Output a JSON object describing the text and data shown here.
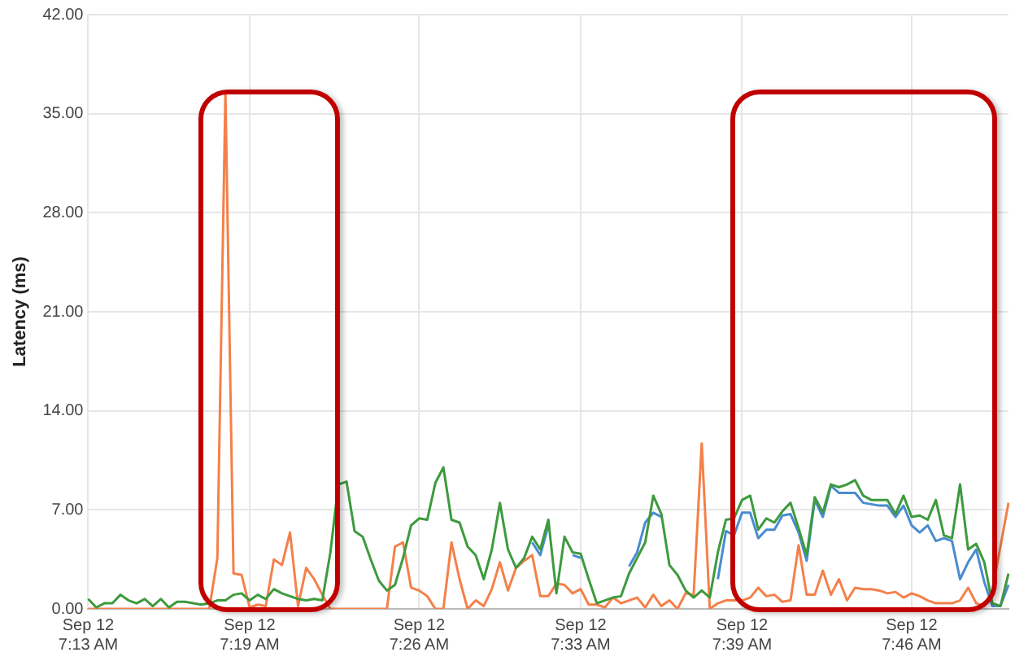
{
  "chart_data": {
    "type": "line",
    "ylabel": "Latency (ms)",
    "categories": [
      "Sep 12\n7:13 AM",
      null,
      null,
      null,
      null,
      null,
      null,
      null,
      null,
      null,
      null,
      null,
      null,
      null,
      null,
      null,
      null,
      null,
      null,
      null,
      "Sep 12\n7:19 AM",
      null,
      null,
      null,
      null,
      null,
      null,
      null,
      null,
      null,
      null,
      null,
      null,
      null,
      null,
      null,
      null,
      null,
      null,
      null,
      null,
      "Sep 12\n7:26 AM",
      null,
      null,
      null,
      null,
      null,
      null,
      null,
      null,
      null,
      null,
      null,
      null,
      null,
      null,
      null,
      null,
      null,
      null,
      null,
      "Sep 12\n7:33 AM",
      null,
      null,
      null,
      null,
      null,
      null,
      null,
      null,
      null,
      null,
      null,
      null,
      null,
      null,
      null,
      null,
      null,
      null,
      null,
      "Sep 12\n7:39 AM",
      null,
      null,
      null,
      null,
      null,
      null,
      null,
      null,
      null,
      null,
      null,
      null,
      null,
      null,
      null,
      null,
      null,
      null,
      null,
      null,
      "Sep 12\n7:46 AM",
      null,
      null,
      null,
      null,
      null,
      null,
      null,
      null,
      null,
      null,
      null,
      null
    ],
    "series": [
      {
        "color": "#3d9a3d",
        "values": [
          0.7,
          0.1,
          0.4,
          0.4,
          1.0,
          0.6,
          0.4,
          0.7,
          0.2,
          0.7,
          0.1,
          0.5,
          0.5,
          0.4,
          0.3,
          0.4,
          0.6,
          0.6,
          1.0,
          1.1,
          0.6,
          1.0,
          0.7,
          1.4,
          1.1,
          0.9,
          0.7,
          0.6,
          0.7,
          0.6,
          4.0,
          8.8,
          9.0,
          5.5,
          5.1,
          3.5,
          2.0,
          1.3,
          1.7,
          3.6,
          5.9,
          6.4,
          6.3,
          8.9,
          10.0,
          6.3,
          6.1,
          4.4,
          3.8,
          2.1,
          4.2,
          7.5,
          4.2,
          2.9,
          3.6,
          5.1,
          4.2,
          6.3,
          1.1,
          5.1,
          4.0,
          3.9,
          2.1,
          0.4,
          0.6,
          0.8,
          0.9,
          2.5,
          3.6,
          4.7,
          8.0,
          6.7,
          3.1,
          2.4,
          1.3,
          0.8,
          1.3,
          0.8,
          4.0,
          6.3,
          6.4,
          7.7,
          8.0,
          5.6,
          6.4,
          6.1,
          6.9,
          7.5,
          5.7,
          3.8,
          7.9,
          6.8,
          8.8,
          8.6,
          8.8,
          9.1,
          8.0,
          7.7,
          7.7,
          7.7,
          6.7,
          8.0,
          6.5,
          6.6,
          6.3,
          7.7,
          5.2,
          5.0,
          8.8,
          4.2,
          4.6,
          3.3,
          0.4,
          0.2,
          2.5
        ]
      },
      {
        "color": "#4a8bd0",
        "values": [
          null,
          null,
          null,
          null,
          null,
          null,
          null,
          null,
          null,
          null,
          null,
          null,
          null,
          null,
          null,
          null,
          null,
          null,
          null,
          null,
          null,
          null,
          null,
          null,
          null,
          null,
          null,
          null,
          null,
          null,
          null,
          null,
          null,
          null,
          null,
          null,
          null,
          null,
          null,
          null,
          null,
          null,
          null,
          null,
          null,
          null,
          null,
          null,
          null,
          null,
          null,
          null,
          null,
          null,
          null,
          4.7,
          3.8,
          5.9,
          null,
          null,
          3.8,
          3.6,
          null,
          null,
          null,
          null,
          null,
          3.0,
          4.0,
          6.1,
          6.8,
          6.5,
          null,
          null,
          null,
          null,
          null,
          null,
          2.1,
          5.5,
          5.2,
          6.8,
          6.8,
          5.0,
          5.6,
          5.6,
          6.6,
          6.7,
          5.4,
          3.4,
          7.7,
          6.5,
          8.7,
          8.2,
          8.2,
          8.2,
          7.5,
          7.4,
          7.3,
          7.3,
          6.5,
          7.3,
          5.9,
          5.4,
          5.9,
          4.8,
          5.0,
          4.8,
          2.1,
          3.3,
          4.2,
          1.9,
          0.2,
          0.2,
          1.7
        ]
      },
      {
        "color": "#f4804a",
        "values": [
          0,
          0,
          0,
          0,
          0,
          0,
          0,
          0,
          0,
          0,
          0,
          0,
          0,
          0,
          0,
          0,
          3.6,
          36.5,
          2.5,
          2.4,
          0.1,
          0.3,
          0.2,
          3.5,
          3.1,
          5.4,
          0.2,
          2.9,
          2.1,
          1.0,
          0,
          0,
          0,
          0,
          0,
          0,
          0,
          0,
          4.4,
          4.7,
          1.5,
          1.3,
          0.9,
          0,
          0,
          4.7,
          2.1,
          0,
          0.6,
          0.2,
          1.4,
          3.3,
          1.3,
          2.9,
          3.4,
          3.8,
          0.9,
          0.9,
          1.8,
          1.7,
          1.1,
          1.4,
          0.3,
          0.3,
          0.1,
          0.8,
          0.4,
          0.6,
          0.8,
          0.1,
          1.0,
          0.2,
          0.6,
          0,
          1.1,
          1.0,
          11.7,
          0,
          0.4,
          0.6,
          0.6,
          0.6,
          0.8,
          1.5,
          0.9,
          1.0,
          0.5,
          0.6,
          4.5,
          1.0,
          1.0,
          2.7,
          1.0,
          2.1,
          0.6,
          1.5,
          1.4,
          1.4,
          1.3,
          1.1,
          1.2,
          0.8,
          1.1,
          0.9,
          0.6,
          0.4,
          0.4,
          0.4,
          0.6,
          1.5,
          0.4,
          0.2,
          1.3,
          4.4,
          7.5
        ]
      }
    ],
    "ylim": [
      0,
      42
    ],
    "yticks": [
      {
        "value": 0,
        "label": "0.00"
      },
      {
        "value": 7,
        "label": "7.00"
      },
      {
        "value": 14,
        "label": "14.00"
      },
      {
        "value": 21,
        "label": "21.00"
      },
      {
        "value": 28,
        "label": "28.00"
      },
      {
        "value": 35,
        "label": "35.00"
      },
      {
        "value": 42,
        "label": "42.00"
      }
    ],
    "grid": true,
    "legend": false,
    "marker": "none"
  }
}
